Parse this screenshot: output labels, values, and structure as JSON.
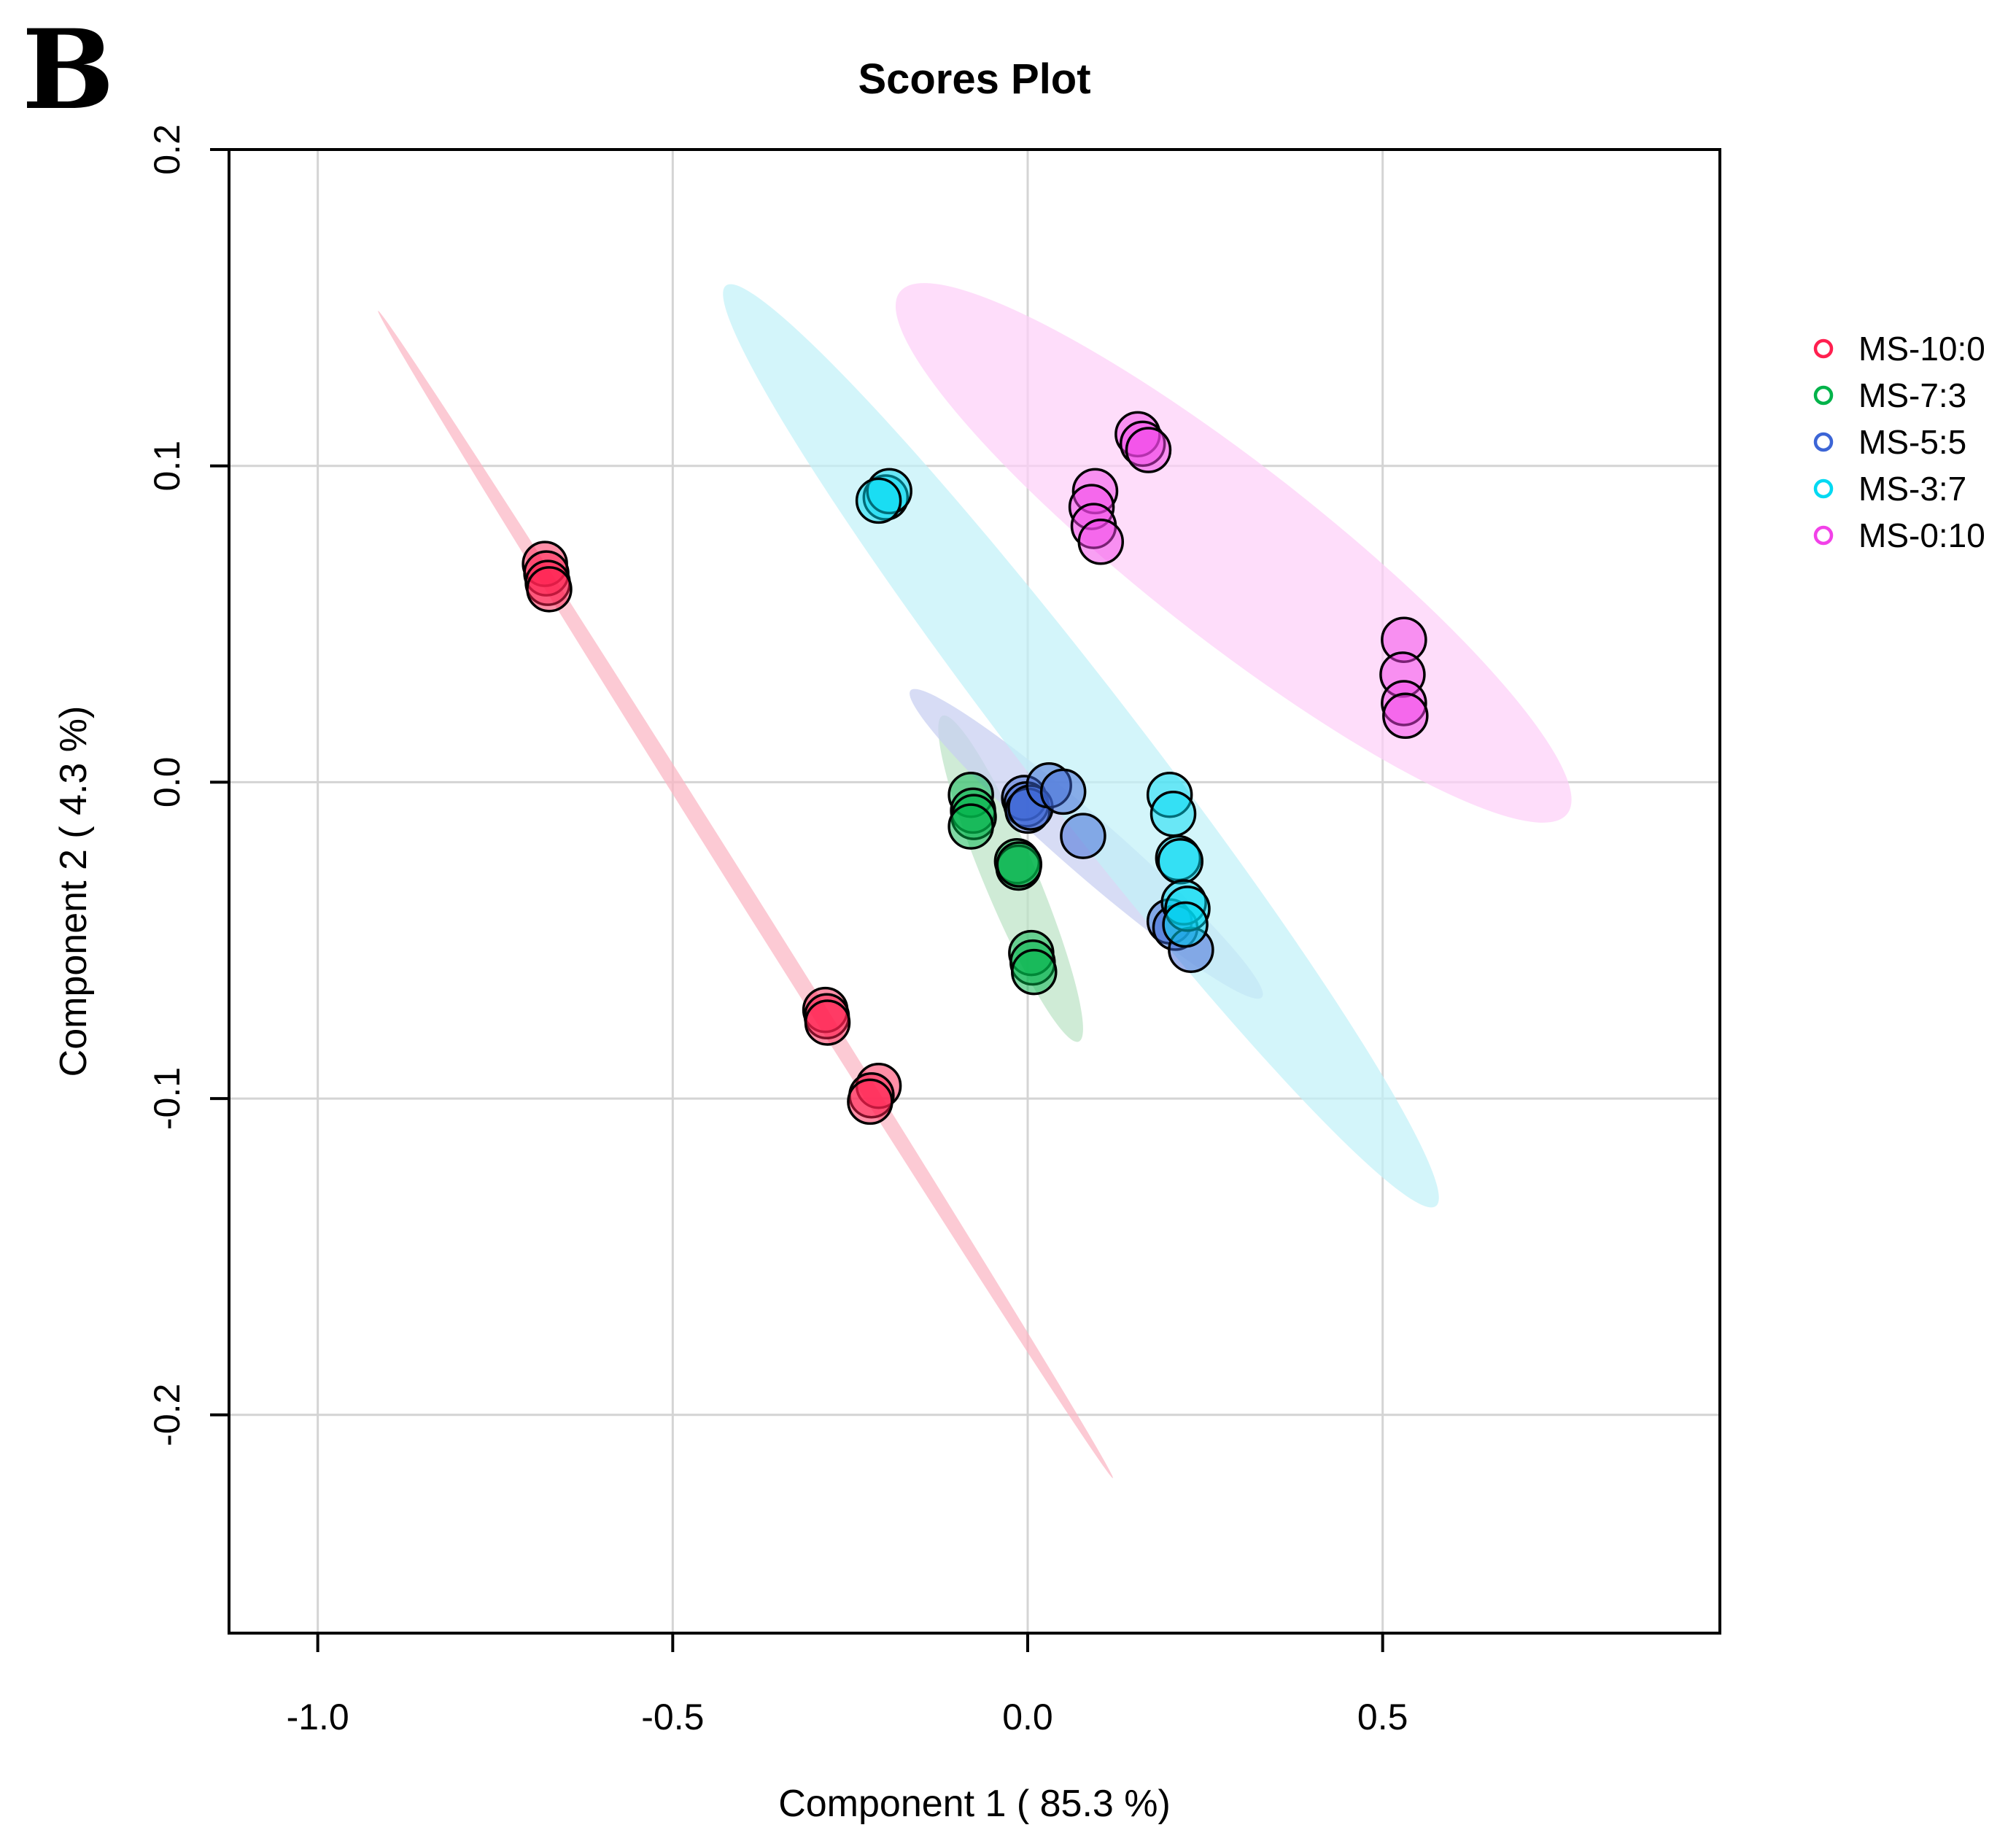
{
  "chart_data": {
    "type": "scatter",
    "panel_label": "B",
    "title": "Scores Plot",
    "xlabel": "Component 1 ( 85.3 %)",
    "ylabel": "Component 2 ( 4.3 %)",
    "xlim": [
      -1.125,
      0.975
    ],
    "ylim": [
      -0.269,
      0.2
    ],
    "grid": true,
    "legend_position": "right",
    "x_ticks": [
      -1.0,
      -0.5,
      0.0,
      0.5
    ],
    "x_tick_labels": [
      "-1.0",
      "-0.5",
      "0.0",
      "0.5"
    ],
    "y_ticks": [
      -0.2,
      -0.1,
      0.0,
      0.1,
      0.2
    ],
    "y_tick_labels": [
      "-0.2",
      "-0.1",
      "0.0",
      "0.1",
      "0.2"
    ],
    "series": [
      {
        "name": "MS-10:0",
        "color": "#ff1f4f",
        "ellipse_color": "#fbb6c4",
        "ellipse": {
          "cx": -0.39,
          "cy": -0.036,
          "p1": [
            -0.915,
            0.149
          ],
          "p2": [
            0.12,
            -0.22
          ],
          "minor_fraction": 0.012
        },
        "points": [
          [
            -0.68,
            0.069
          ],
          [
            -0.678,
            0.066
          ],
          [
            -0.676,
            0.063
          ],
          [
            -0.674,
            0.061
          ],
          [
            -0.285,
            -0.072
          ],
          [
            -0.283,
            -0.074
          ],
          [
            -0.282,
            -0.076
          ],
          [
            -0.21,
            -0.096
          ],
          [
            -0.22,
            -0.099
          ],
          [
            -0.222,
            -0.101
          ]
        ]
      },
      {
        "name": "MS-7:3",
        "color": "#00b34a",
        "ellipse_color": "#bde3c6",
        "ellipse": {
          "cx": -0.04,
          "cy": -0.031,
          "p1": [
            -0.12,
            0.021
          ],
          "p2": [
            0.072,
            -0.082
          ],
          "minor_fraction": 0.15
        },
        "points": [
          [
            -0.08,
            -0.004
          ],
          [
            -0.077,
            -0.009
          ],
          [
            -0.076,
            -0.011
          ],
          [
            -0.08,
            -0.014
          ],
          [
            -0.015,
            -0.025
          ],
          [
            -0.013,
            -0.027
          ],
          [
            -0.012,
            -0.026
          ],
          [
            0.005,
            -0.054
          ],
          [
            0.007,
            -0.057
          ],
          [
            0.009,
            -0.06
          ]
        ]
      },
      {
        "name": "MS-5:5",
        "color": "#3c65d6",
        "ellipse_color": "#c7cff1",
        "ellipse": {
          "cx": 0.075,
          "cy": -0.03,
          "p1": [
            -0.165,
            0.029
          ],
          "p2": [
            0.33,
            -0.068
          ],
          "minor_fraction": 0.12
        },
        "points": [
          [
            -0.005,
            -0.005
          ],
          [
            -0.002,
            -0.007
          ],
          [
            0.0,
            -0.009
          ],
          [
            0.004,
            -0.008
          ],
          [
            0.03,
            -0.001
          ],
          [
            0.05,
            -0.003
          ],
          [
            0.078,
            -0.017
          ],
          [
            0.2,
            -0.044
          ],
          [
            0.208,
            -0.046
          ],
          [
            0.23,
            -0.053
          ]
        ]
      },
      {
        "name": "MS-3:7",
        "color": "#00d9f2",
        "ellipse_color": "#c2f1f8",
        "ellipse": {
          "cx": 0.07,
          "cy": 0.012,
          "p1": [
            -0.425,
            0.157
          ],
          "p2": [
            0.575,
            -0.134
          ],
          "minor_fraction": 0.1
        },
        "points": [
          [
            -0.2,
            0.09
          ],
          [
            -0.195,
            0.092
          ],
          [
            -0.21,
            0.089
          ],
          [
            0.2,
            -0.004
          ],
          [
            0.205,
            -0.01
          ],
          [
            0.212,
            -0.024
          ],
          [
            0.215,
            -0.025
          ],
          [
            0.22,
            -0.038
          ],
          [
            0.225,
            -0.04
          ],
          [
            0.222,
            -0.045
          ]
        ]
      },
      {
        "name": "MS-0:10",
        "color": "#f241e8",
        "ellipse_color": "#fdd0f8",
        "ellipse": {
          "cx": 0.29,
          "cy": 0.073,
          "p1": [
            -0.18,
            0.155
          ],
          "p2": [
            0.76,
            -0.01
          ],
          "minor_fraction": 0.205
        },
        "points": [
          [
            0.155,
            0.11
          ],
          [
            0.162,
            0.107
          ],
          [
            0.17,
            0.105
          ],
          [
            0.095,
            0.092
          ],
          [
            0.09,
            0.087
          ],
          [
            0.093,
            0.081
          ],
          [
            0.103,
            0.076
          ],
          [
            0.53,
            0.045
          ],
          [
            0.528,
            0.034
          ],
          [
            0.53,
            0.025
          ],
          [
            0.532,
            0.021
          ]
        ]
      }
    ]
  }
}
